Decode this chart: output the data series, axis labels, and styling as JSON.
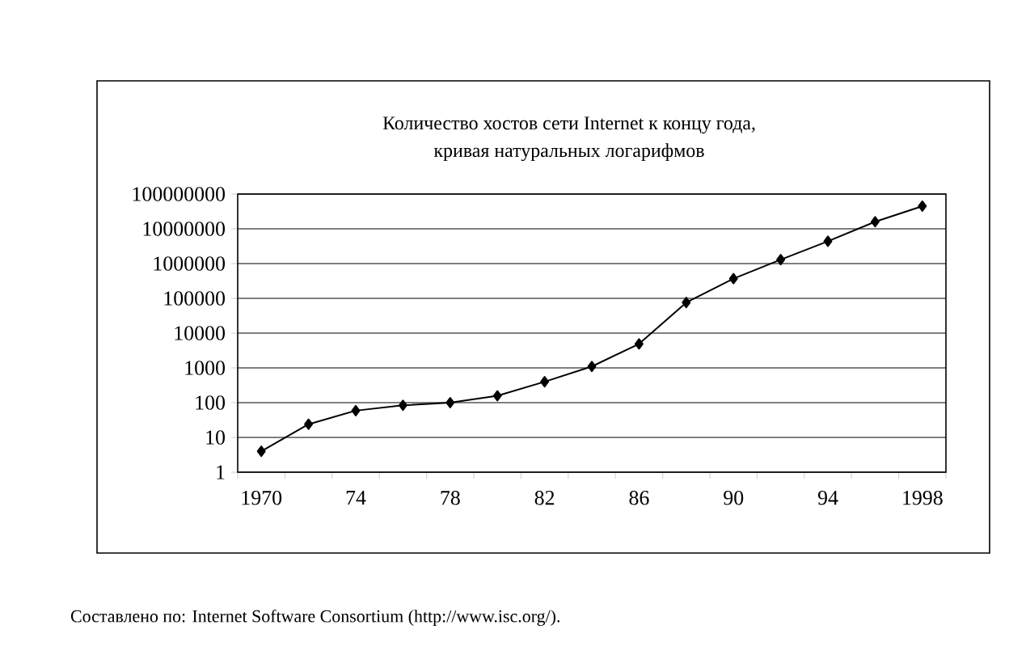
{
  "chart_data": {
    "type": "line",
    "title": "Количество хостов сети Internet к концу года,\nкривая натуральных логарифмов",
    "categories": [
      "1970",
      null,
      "74",
      null,
      "78",
      null,
      "82",
      null,
      "86",
      null,
      "90",
      null,
      "94",
      null,
      "1998"
    ],
    "series": [
      {
        "color": "#000000",
        "values": [
          4,
          24,
          59,
          84,
          100,
          158,
          400,
          1100,
          4900,
          76000,
          370000,
          1300000,
          4400000,
          16000000,
          45000000
        ]
      }
    ],
    "log": true,
    "ylim": [
      1,
      100000000
    ],
    "yticks": [
      1,
      10,
      100,
      1000,
      10000,
      100000,
      1000000,
      10000000,
      100000000
    ],
    "grid": "y",
    "marker": "diamond",
    "line_style": "solid",
    "annotations": [
      "Составлено по: Internet Software Consortium (http://www.isc.org/)."
    ]
  }
}
